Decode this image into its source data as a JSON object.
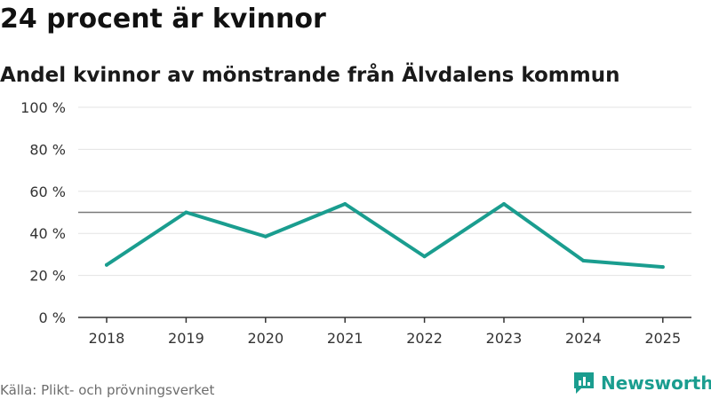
{
  "header": {
    "title": "24 procent är kvinnor",
    "subtitle": "Andel kvinnor av mönstrande från Älvdalens kommun"
  },
  "footer": {
    "source": "Källa: Plikt- och prövningsverket",
    "brand": "Newsworthy",
    "brand_icon": "bar-chart-logo-icon"
  },
  "colors": {
    "line": "#1a9d8f",
    "grid": "#e3e3e3",
    "reference_line": "#7a7a7a",
    "axis": "#333333"
  },
  "chart_data": {
    "type": "line",
    "title": "24 procent är kvinnor",
    "subtitle": "Andel kvinnor av mönstrande från Älvdalens kommun",
    "categories": [
      "2018",
      "2019",
      "2020",
      "2021",
      "2022",
      "2023",
      "2024",
      "2025"
    ],
    "series": [
      {
        "values": [
          25,
          50,
          38.5,
          54,
          29,
          54,
          27,
          24
        ]
      }
    ],
    "reference_line": 50,
    "ylim": [
      0,
      100
    ],
    "yticks": [
      0,
      20,
      40,
      60,
      80,
      100
    ],
    "ytick_labels": [
      "0 %",
      "20 %",
      "40 %",
      "60 %",
      "80 %",
      "100 %"
    ],
    "grid": true,
    "legend": "none"
  }
}
